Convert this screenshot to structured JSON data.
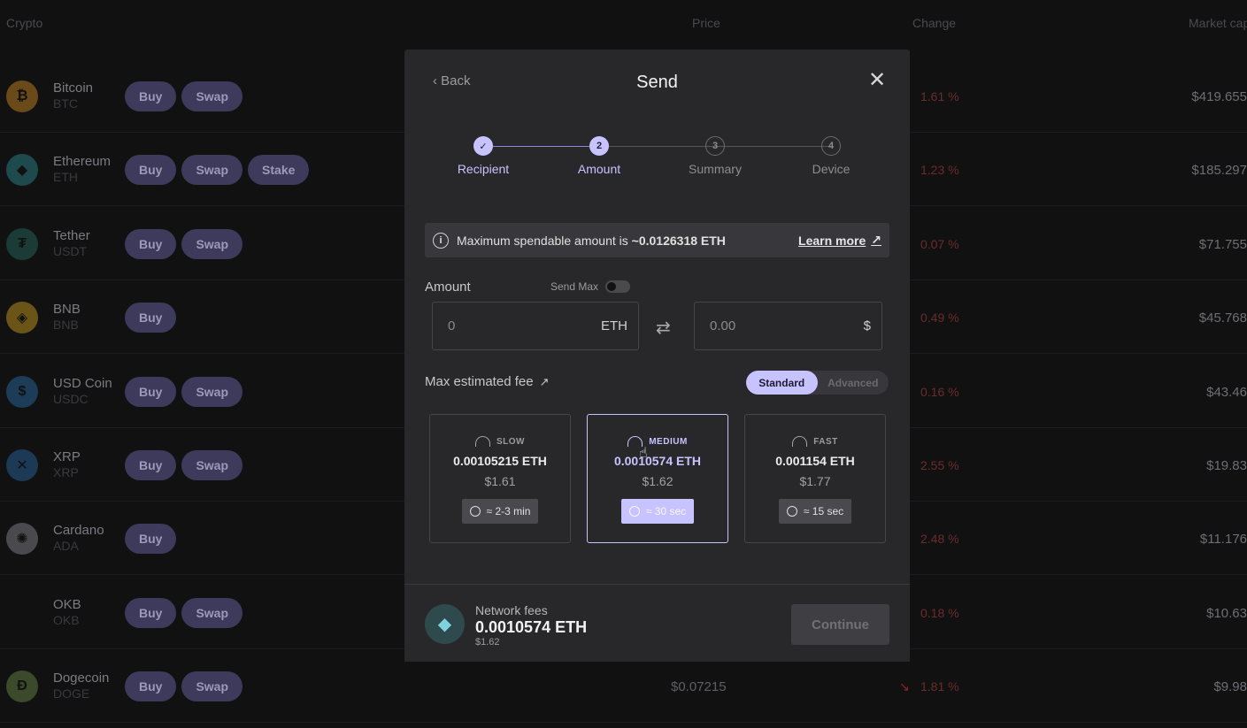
{
  "header": {
    "crypto": "Crypto",
    "price": "Price",
    "change": "Change",
    "market_cap": "Market cap"
  },
  "rows": [
    {
      "name": "Bitcoin",
      "ticker": "BTC",
      "actions": [
        "Buy",
        "Swap"
      ],
      "change": "1.61 %",
      "mcap": "$419.655",
      "color": "#6b4a1a",
      "glyph": "₿"
    },
    {
      "name": "Ethereum",
      "ticker": "ETH",
      "actions": [
        "Buy",
        "Swap",
        "Stake"
      ],
      "change": "1.23 %",
      "mcap": "$185.297",
      "color": "#1e4a4e",
      "glyph": "◆"
    },
    {
      "name": "Tether",
      "ticker": "USDT",
      "actions": [
        "Buy",
        "Swap"
      ],
      "change": "0.07 %",
      "mcap": "$71.755",
      "color": "#1b3c36",
      "glyph": "₮"
    },
    {
      "name": "BNB",
      "ticker": "BNB",
      "actions": [
        "Buy"
      ],
      "change": "0.49 %",
      "mcap": "$45.768",
      "color": "#6b5418",
      "glyph": "◈"
    },
    {
      "name": "USD Coin",
      "ticker": "USDC",
      "actions": [
        "Buy",
        "Swap"
      ],
      "change": "0.16 %",
      "mcap": "$43.46",
      "color": "#1c3c58",
      "glyph": "$"
    },
    {
      "name": "XRP",
      "ticker": "XRP",
      "actions": [
        "Buy",
        "Swap"
      ],
      "change": "2.55 %",
      "mcap": "$19.83",
      "color": "#1c3a56",
      "glyph": "✕"
    },
    {
      "name": "Cardano",
      "ticker": "ADA",
      "actions": [
        "Buy"
      ],
      "change": "2.48 %",
      "mcap": "$11.176",
      "color": "#4a4a4e",
      "glyph": "✺"
    },
    {
      "name": "OKB",
      "ticker": "OKB",
      "actions": [
        "Buy",
        "Swap"
      ],
      "change": "0.18 %",
      "mcap": "$10.63",
      "color": "#111112",
      "glyph": "❖"
    },
    {
      "name": "Dogecoin",
      "ticker": "DOGE",
      "actions": [
        "Buy",
        "Swap"
      ],
      "price": "$0.07215",
      "change": "1.81 %",
      "mcap": "$9.98",
      "color": "#3a4a2a",
      "glyph": "Ð"
    }
  ],
  "modal": {
    "back": "Back",
    "title": "Send",
    "steps": [
      "Recipient",
      "Amount",
      "Summary",
      "Device"
    ],
    "step_numbers": [
      "✓",
      "2",
      "3",
      "4"
    ],
    "info_text": "Maximum spendable amount is",
    "info_value": "~0.0126318 ETH",
    "learn_more": "Learn more",
    "amount_label": "Amount",
    "send_max": "Send Max",
    "crypto_value": "0",
    "crypto_unit": "ETH",
    "fiat_value": "0.00",
    "fiat_unit": "$",
    "fee_label": "Max estimated fee",
    "mode_standard": "Standard",
    "mode_advanced": "Advanced",
    "fees": [
      {
        "speed": "SLOW",
        "eth": "0.00105215 ETH",
        "usd": "$1.61",
        "time": "≈ 2-3 min"
      },
      {
        "speed": "MEDIUM",
        "eth": "0.0010574 ETH",
        "usd": "$1.62",
        "time": "≈ 30 sec"
      },
      {
        "speed": "FAST",
        "eth": "0.001154 ETH",
        "usd": "$1.77",
        "time": "≈ 15 sec"
      }
    ],
    "network_fees_label": "Network fees",
    "network_fees_value": "0.0010574 ETH",
    "network_fees_usd": "$1.62",
    "continue": "Continue"
  }
}
